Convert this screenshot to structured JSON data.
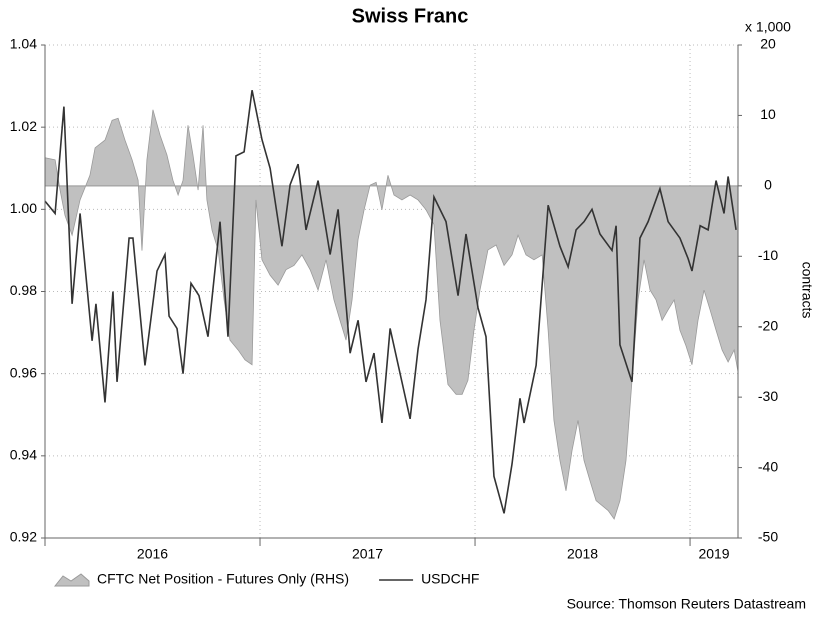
{
  "chart_data": {
    "type": "line",
    "title": "Swiss Franc",
    "y2_label": "contracts",
    "y2_unit": "x 1,000",
    "source": "Source: Thomson Reuters Datastream",
    "xlim": [
      2016,
      2019.223
    ],
    "xticks": [
      {
        "value": 2016,
        "label": "2016"
      },
      {
        "value": 2017,
        "label": "2017"
      },
      {
        "value": 2018,
        "label": "2018"
      },
      {
        "value": 2019,
        "label": "2019"
      }
    ],
    "ylim": [
      0.92,
      1.04
    ],
    "yticks": [
      1.04,
      1.02,
      {
        "value": 1,
        "label": "1.00"
      },
      0.98,
      0.96,
      0.94,
      0.92
    ],
    "y2lim": [
      -50,
      20
    ],
    "y2ticks": [
      20,
      10,
      0,
      -10,
      -20,
      -30,
      -40,
      -50
    ],
    "grid": true,
    "series": [
      {
        "name": "CFTC Net Position - Futures Only (RHS)",
        "type": "area",
        "axis": "y2",
        "color": "#c0c0c0",
        "x": [
          2016,
          2016.047,
          2016.07,
          2016.093,
          2016.126,
          2016.163,
          2016.209,
          2016.233,
          2016.279,
          2016.312,
          2016.34,
          2016.372,
          2016.405,
          2016.433,
          2016.451,
          2016.474,
          2016.502,
          2016.535,
          2016.567,
          2016.595,
          2016.619,
          2016.642,
          2016.665,
          2016.688,
          2016.712,
          2016.735,
          2016.753,
          2016.777,
          2016.805,
          2016.833,
          2016.86,
          2016.898,
          2016.93,
          2016.963,
          2016.981,
          2017.009,
          2017.047,
          2017.084,
          2017.121,
          2017.158,
          2017.195,
          2017.233,
          2017.27,
          2017.307,
          2017.344,
          2017.372,
          2017.4,
          2017.428,
          2017.456,
          2017.484,
          2017.512,
          2017.54,
          2017.567,
          2017.595,
          2017.623,
          2017.66,
          2017.698,
          2017.735,
          2017.772,
          2017.809,
          2017.837,
          2017.874,
          2017.912,
          2017.94,
          2017.967,
          2017.995,
          2018.023,
          2018.06,
          2018.098,
          2018.135,
          2018.172,
          2018.2,
          2018.237,
          2018.274,
          2018.312,
          2018.34,
          2018.367,
          2018.395,
          2018.423,
          2018.451,
          2018.479,
          2018.507,
          2018.535,
          2018.563,
          2018.591,
          2018.619,
          2018.647,
          2018.674,
          2018.702,
          2018.73,
          2018.758,
          2018.786,
          2018.814,
          2018.842,
          2018.87,
          2018.898,
          2018.926,
          2018.953,
          2018.981,
          2019.009,
          2019.037,
          2019.065,
          2019.093,
          2019.121,
          2019.149,
          2019.177,
          2019.205,
          2019.223
        ],
        "values": [
          4.0,
          3.7,
          -0.6,
          -4.2,
          -7.0,
          -2.0,
          1.5,
          5.4,
          6.5,
          9.3,
          9.6,
          6.5,
          3.7,
          0.8,
          -9.2,
          3.7,
          10.8,
          7.2,
          4.4,
          0.8,
          -1.3,
          0.8,
          8.6,
          4.4,
          -0.6,
          8.6,
          -2.0,
          -6.3,
          -9.1,
          -16.2,
          -21.9,
          -23.3,
          -24.7,
          -25.4,
          -2.0,
          -10.5,
          -12.7,
          -14.1,
          -11.9,
          -11.3,
          -9.8,
          -11.9,
          -14.8,
          -10.5,
          -16.2,
          -19.1,
          -21.9,
          -16.2,
          -7.6,
          -3.4,
          0.1,
          0.5,
          -3.4,
          1.5,
          -1.3,
          -2.0,
          -1.3,
          -2.0,
          -3.4,
          -5.5,
          -19.1,
          -28.2,
          -29.6,
          -29.6,
          -27.6,
          -20.5,
          -14.8,
          -9.1,
          -8.4,
          -11.3,
          -9.8,
          -7.0,
          -9.8,
          -10.5,
          -9.8,
          -20.5,
          -33.3,
          -39.0,
          -43.3,
          -37.6,
          -33.3,
          -39.0,
          -41.9,
          -44.7,
          -45.4,
          -46.1,
          -47.3,
          -44.7,
          -39.0,
          -27.6,
          -16.2,
          -10.5,
          -14.8,
          -16.2,
          -19.1,
          -17.6,
          -16.2,
          -20.5,
          -22.7,
          -25.4,
          -19.1,
          -14.8,
          -17.6,
          -20.5,
          -23.3,
          -25.0,
          -23.3,
          -26.4
        ]
      },
      {
        "name": "USDCHF",
        "type": "line",
        "color": "#333333",
        "x": [
          2016,
          2016.047,
          2016.088,
          2016.126,
          2016.163,
          2016.219,
          2016.237,
          2016.279,
          2016.316,
          2016.335,
          2016.391,
          2016.409,
          2016.465,
          2016.521,
          2016.558,
          2016.577,
          2016.614,
          2016.642,
          2016.679,
          2016.716,
          2016.758,
          2016.814,
          2016.851,
          2016.888,
          2016.926,
          2016.963,
          2017.009,
          2017.047,
          2017.102,
          2017.14,
          2017.177,
          2017.214,
          2017.27,
          2017.326,
          2017.363,
          2017.419,
          2017.456,
          2017.493,
          2017.53,
          2017.567,
          2017.605,
          2017.66,
          2017.698,
          2017.735,
          2017.772,
          2017.809,
          2017.865,
          2017.921,
          2017.958,
          2018.014,
          2018.051,
          2018.088,
          2018.135,
          2018.172,
          2018.209,
          2018.228,
          2018.284,
          2018.34,
          2018.395,
          2018.433,
          2018.47,
          2018.507,
          2018.544,
          2018.581,
          2018.637,
          2018.656,
          2018.674,
          2018.73,
          2018.767,
          2018.805,
          2018.86,
          2018.898,
          2018.953,
          2018.991,
          2019.009,
          2019.047,
          2019.084,
          2019.121,
          2019.158,
          2019.177,
          2019.214
        ],
        "values": [
          1.002,
          0.999,
          1.025,
          0.977,
          0.999,
          0.968,
          0.977,
          0.953,
          0.98,
          0.958,
          0.993,
          0.993,
          0.962,
          0.985,
          0.989,
          0.974,
          0.971,
          0.96,
          0.982,
          0.979,
          0.969,
          0.997,
          0.969,
          1.013,
          1.014,
          1.029,
          1.017,
          1.01,
          0.991,
          1.006,
          1.011,
          0.995,
          1.007,
          0.989,
          1.0,
          0.965,
          0.973,
          0.958,
          0.965,
          0.948,
          0.971,
          0.958,
          0.949,
          0.966,
          0.978,
          1.003,
          0.997,
          0.979,
          0.994,
          0.976,
          0.969,
          0.935,
          0.926,
          0.938,
          0.954,
          0.948,
          0.962,
          1.001,
          0.991,
          0.986,
          0.995,
          0.997,
          1.0,
          0.994,
          0.99,
          0.996,
          0.967,
          0.958,
          0.993,
          0.997,
          1.005,
          0.997,
          0.993,
          0.988,
          0.985,
          0.996,
          0.995,
          1.007,
          0.999,
          1.008,
          0.995
        ]
      }
    ]
  }
}
